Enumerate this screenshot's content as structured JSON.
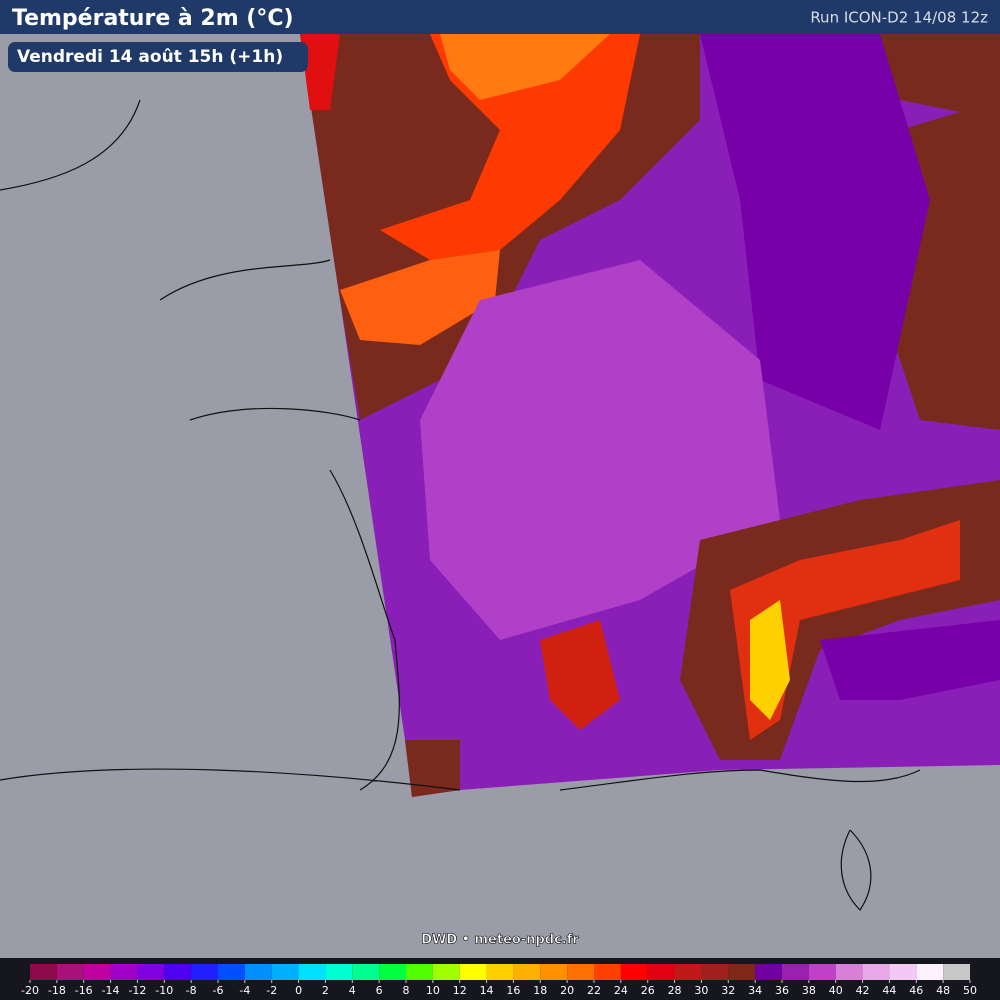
{
  "header": {
    "title": "Température à 2m (°C)",
    "run": "Run ICON-D2 14/08 12z"
  },
  "valid_time": "Vendredi 14 août 15h (+1h)",
  "credit": "DWD • meteo-npdc.fr",
  "colorbar": {
    "ticks": [
      -20,
      -18,
      -16,
      -14,
      -12,
      -10,
      -8,
      -6,
      -4,
      -2,
      0,
      2,
      4,
      6,
      8,
      10,
      12,
      14,
      16,
      18,
      20,
      22,
      24,
      26,
      28,
      30,
      32,
      34,
      36,
      38,
      40,
      42,
      44,
      46,
      48,
      50
    ],
    "colors": [
      "#8b0a4a",
      "#a8107a",
      "#c000a0",
      "#a000c8",
      "#8000e0",
      "#5000f0",
      "#2020ff",
      "#0050ff",
      "#0090ff",
      "#00b0ff",
      "#00e0ff",
      "#00ffd0",
      "#00ff90",
      "#00ff40",
      "#50ff00",
      "#a0ff00",
      "#ffff00",
      "#ffd000",
      "#ffb000",
      "#ff9000",
      "#ff7000",
      "#ff4000",
      "#ff0000",
      "#e00010",
      "#c01818",
      "#a02020",
      "#802818",
      "#7000a0",
      "#9a20b0",
      "#c040c8",
      "#d880d8",
      "#e8a8e8",
      "#f4c8f4",
      "#fff0ff",
      "#c8c8c8"
    ]
  }
}
